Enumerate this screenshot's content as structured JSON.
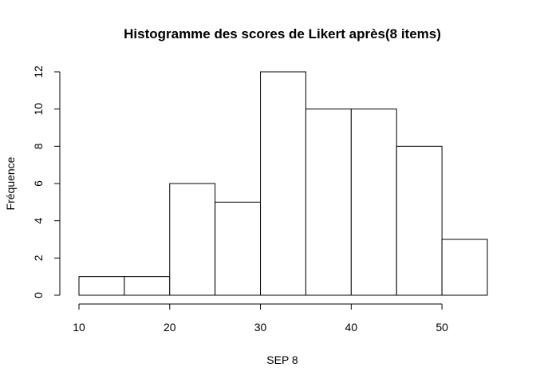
{
  "chart_data": {
    "type": "bar",
    "title": "Histogramme des scores de Likert après(8 items)",
    "xlabel": "SEP 8",
    "ylabel": "Fréquence",
    "bins": [
      [
        10,
        15
      ],
      [
        15,
        20
      ],
      [
        20,
        25
      ],
      [
        25,
        30
      ],
      [
        30,
        35
      ],
      [
        35,
        40
      ],
      [
        40,
        45
      ],
      [
        45,
        50
      ],
      [
        50,
        55
      ]
    ],
    "values": [
      1,
      1,
      6,
      5,
      12,
      10,
      10,
      8,
      3
    ],
    "xticks": [
      10,
      20,
      30,
      40,
      50
    ],
    "yticks": [
      0,
      2,
      4,
      6,
      8,
      10,
      12
    ],
    "xlim": [
      10,
      55
    ],
    "ylim": [
      0,
      12
    ],
    "grid": false,
    "bar_fill": "#ffffff",
    "bar_stroke": "#000000"
  }
}
